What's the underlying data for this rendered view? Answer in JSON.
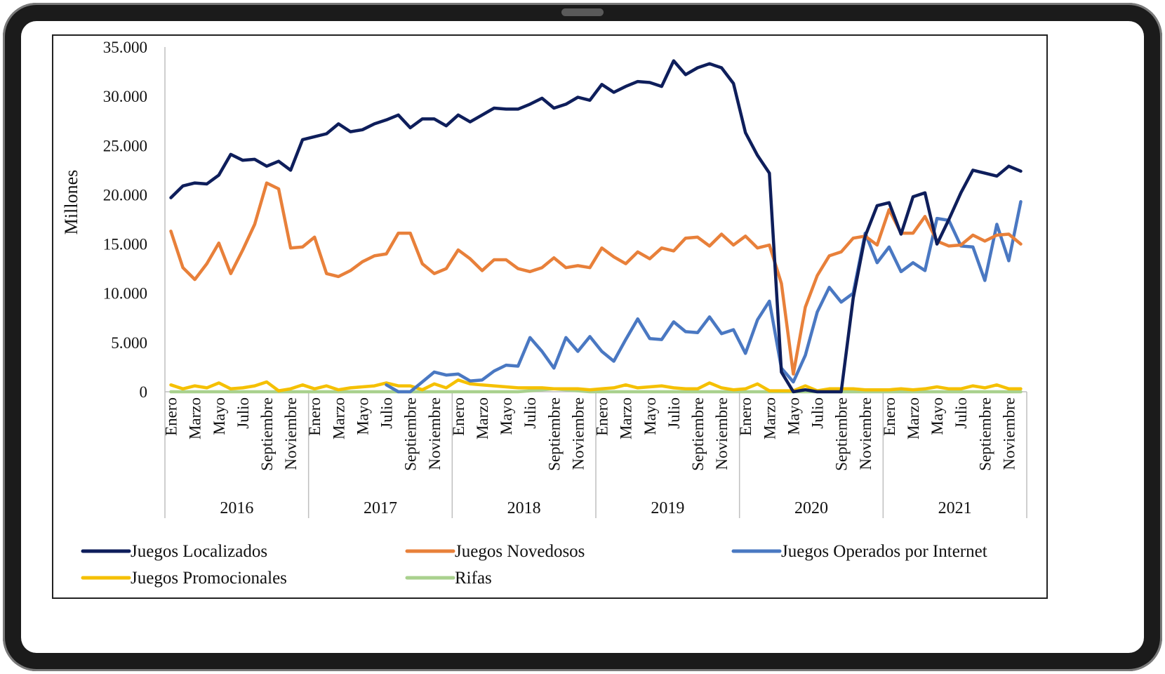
{
  "chart_data": {
    "type": "line",
    "title": "",
    "xlabel": "",
    "ylabel": "Millones",
    "ylim": [
      0,
      35000
    ],
    "y_ticks": [
      "0",
      "5.000",
      "10.000",
      "15.000",
      "20.000",
      "25.000",
      "30.000",
      "35.000"
    ],
    "grid": false,
    "legend_position": "bottom",
    "years": [
      "2016",
      "2017",
      "2018",
      "2019",
      "2020",
      "2021"
    ],
    "month_labels": [
      "Enero",
      "Marzo",
      "Mayo",
      "Julio",
      "Septiembre",
      "Noviembre"
    ],
    "months_per_year": 12,
    "series": [
      {
        "name": "Juegos Localizados",
        "color": "#0e1e5b",
        "values": [
          19700,
          20900,
          21200,
          21100,
          22000,
          24100,
          23500,
          23600,
          22900,
          23400,
          22500,
          25600,
          25900,
          26200,
          27200,
          26400,
          26600,
          27200,
          27600,
          28100,
          26800,
          27700,
          27700,
          27000,
          28100,
          27400,
          28100,
          28800,
          28700,
          28700,
          29200,
          29800,
          28800,
          29200,
          29900,
          29600,
          31200,
          30400,
          31000,
          31500,
          31400,
          31000,
          33600,
          32200,
          32900,
          33300,
          32900,
          31300,
          26300,
          24000,
          22200,
          2000,
          0,
          200,
          0,
          0,
          0,
          9500,
          15800,
          18900,
          19200,
          16000,
          19800,
          20200,
          15000,
          17500,
          20200,
          22500,
          22200,
          21900,
          22900,
          22400
        ]
      },
      {
        "name": "Juegos Novedosos",
        "color": "#e8803a",
        "values": [
          16300,
          12600,
          11400,
          13000,
          15100,
          12000,
          14400,
          17000,
          21200,
          20600,
          14600,
          14700,
          15700,
          12000,
          11700,
          12300,
          13200,
          13800,
          14000,
          16100,
          16100,
          13000,
          12000,
          12500,
          14400,
          13500,
          12300,
          13400,
          13400,
          12500,
          12200,
          12600,
          13600,
          12600,
          12800,
          12600,
          14600,
          13700,
          13000,
          14200,
          13500,
          14600,
          14300,
          15600,
          15700,
          14800,
          16000,
          14900,
          15800,
          14600,
          14900,
          11000,
          1800,
          8600,
          11800,
          13800,
          14200,
          15600,
          15800,
          14900,
          18500,
          16100,
          16100,
          17800,
          15300,
          14800,
          14900,
          15900,
          15300,
          15900,
          16000,
          15000
        ]
      },
      {
        "name": "Juegos Operados por Internet",
        "color": "#4a78c2",
        "values": [
          null,
          null,
          null,
          null,
          null,
          null,
          null,
          null,
          null,
          null,
          null,
          null,
          null,
          null,
          null,
          null,
          null,
          null,
          700,
          0,
          0,
          1000,
          2000,
          1700,
          1800,
          1100,
          1200,
          2100,
          2700,
          2600,
          5500,
          4100,
          2400,
          5500,
          4100,
          5600,
          4100,
          3100,
          5300,
          7400,
          5400,
          5300,
          7100,
          6100,
          6000,
          7600,
          5900,
          6300,
          3900,
          7300,
          9200,
          2400,
          1000,
          3700,
          8100,
          10600,
          9100,
          10000,
          16100,
          13100,
          14700,
          12200,
          13100,
          12300,
          17600,
          17400,
          14800,
          14700,
          11300,
          17000,
          13300,
          19300
        ]
      },
      {
        "name": "Juegos Promocionales",
        "color": "#f5c000",
        "values": [
          700,
          300,
          600,
          400,
          900,
          300,
          400,
          600,
          1000,
          100,
          300,
          700,
          300,
          600,
          200,
          400,
          500,
          600,
          900,
          600,
          600,
          200,
          800,
          400,
          1200,
          800,
          700,
          600,
          500,
          400,
          400,
          400,
          300,
          300,
          300,
          200,
          300,
          400,
          700,
          400,
          500,
          600,
          400,
          300,
          300,
          900,
          400,
          200,
          300,
          800,
          100,
          100,
          100,
          600,
          100,
          300,
          300,
          300,
          200,
          200,
          200,
          300,
          200,
          300,
          500,
          300,
          300,
          600,
          400,
          700,
          300,
          300
        ]
      },
      {
        "name": "Rifas",
        "color": "#a9d18e",
        "values": [
          0,
          0,
          0,
          0,
          0,
          0,
          0,
          0,
          0,
          0,
          0,
          0,
          0,
          0,
          0,
          0,
          0,
          0,
          0,
          0,
          0,
          0,
          0,
          0,
          0,
          0,
          0,
          0,
          0,
          0,
          100,
          200,
          300,
          200,
          100,
          0,
          0,
          0,
          0,
          0,
          0,
          0,
          0,
          0,
          0,
          0,
          0,
          0,
          0,
          0,
          0,
          0,
          0,
          0,
          0,
          0,
          0,
          0,
          0,
          0,
          0,
          0,
          0,
          0,
          0,
          0,
          0,
          0,
          0,
          0,
          0,
          0
        ]
      }
    ]
  }
}
